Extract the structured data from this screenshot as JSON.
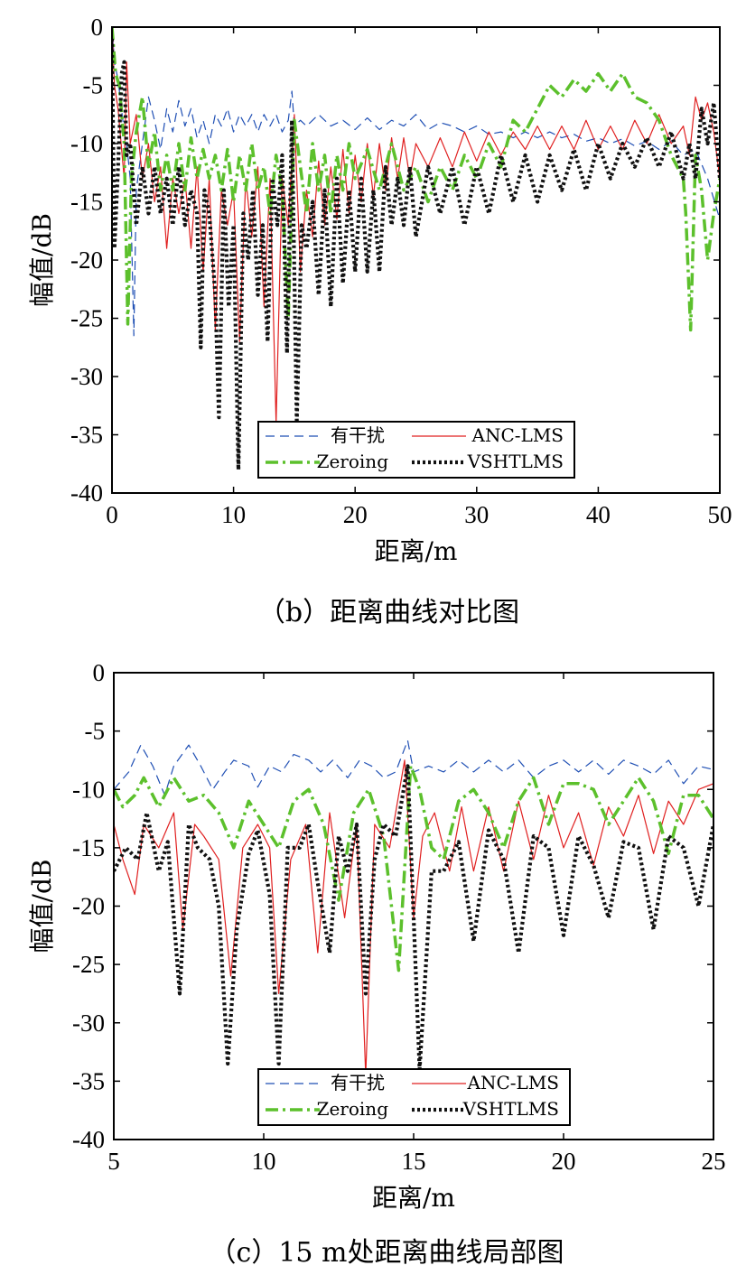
{
  "chart_data": [
    {
      "type": "line",
      "caption": "（b）距离曲线对比图",
      "xlabel": "距离/m",
      "ylabel": "幅值/dB",
      "xlim": [
        0,
        50
      ],
      "ylim": [
        -40,
        0
      ],
      "xticks": [
        0,
        10,
        20,
        30,
        40,
        50
      ],
      "yticks": [
        0,
        -5,
        -10,
        -15,
        -20,
        -25,
        -30,
        -35,
        -40
      ],
      "grid": false,
      "legend_position": "bottom-center",
      "series": [
        {
          "name": "有干扰",
          "color": "#1f4fb4",
          "style": "dashed",
          "x": [
            0,
            0.2,
            0.5,
            1,
            1.2,
            1.5,
            1.8,
            2,
            2.5,
            3,
            3.5,
            4,
            4.5,
            5,
            5.5,
            6,
            6.5,
            7,
            7.5,
            8,
            8.5,
            9,
            9.5,
            10,
            10.5,
            11,
            11.5,
            12,
            12.5,
            13,
            13.5,
            14,
            14.5,
            14.8,
            15,
            15.5,
            16,
            17,
            18,
            19,
            20,
            21,
            22,
            23,
            24,
            25,
            26,
            27,
            28,
            29,
            30,
            31,
            32,
            33,
            34,
            35,
            36,
            37,
            38,
            39,
            40,
            41,
            42,
            43,
            44,
            45,
            46,
            47,
            48,
            49,
            50
          ],
          "y": [
            0,
            -3,
            -4.5,
            -9,
            -10,
            -13,
            -26.5,
            -14,
            -10,
            -6,
            -8,
            -10.5,
            -7,
            -9,
            -6.3,
            -8.5,
            -7,
            -9.5,
            -8,
            -10,
            -7.5,
            -8.5,
            -7,
            -9,
            -7.5,
            -8.5,
            -7.5,
            -9,
            -7.5,
            -8.5,
            -7.5,
            -9,
            -8,
            -5.5,
            -8.5,
            -8,
            -8.5,
            -7.5,
            -8.5,
            -8,
            -8.8,
            -7.8,
            -8.8,
            -8,
            -8.5,
            -7.5,
            -8.8,
            -8.2,
            -8.5,
            -9,
            -8.5,
            -9.2,
            -9,
            -9.5,
            -9,
            -9.5,
            -9,
            -9.5,
            -9.2,
            -9.8,
            -9.5,
            -10,
            -9.6,
            -10.2,
            -9.8,
            -10.5,
            -9.8,
            -11,
            -10.5,
            -13,
            -16.5
          ]
        },
        {
          "name": "ANC-LMS",
          "color": "#e02020",
          "style": "solid",
          "x": [
            0,
            0.2,
            0.5,
            1,
            1.2,
            1.5,
            2,
            2.5,
            3,
            3.5,
            4,
            4.5,
            5,
            5.5,
            6,
            6.5,
            7,
            7.5,
            8,
            8.5,
            9,
            9.5,
            10,
            10.5,
            11,
            11.5,
            12,
            12.5,
            13,
            13.5,
            14,
            14.5,
            15,
            15.5,
            16,
            16.5,
            17,
            17.5,
            18,
            18.5,
            19,
            19.5,
            20,
            20.5,
            21,
            21.5,
            22,
            22.5,
            23,
            23.5,
            24,
            24.5,
            25,
            26,
            27,
            28,
            29,
            30,
            31,
            32,
            33,
            34,
            35,
            36,
            37,
            38,
            39,
            40,
            41,
            42,
            43,
            44,
            45,
            46,
            47,
            47.5,
            48,
            48.5,
            49,
            49.5,
            50
          ],
          "y": [
            0,
            -5,
            -7,
            -13,
            -3,
            -10,
            -7.5,
            -13,
            -10,
            -15,
            -12,
            -19,
            -13,
            -16,
            -13,
            -19,
            -12,
            -21,
            -13,
            -26,
            -14,
            -17,
            -14,
            -27,
            -13,
            -18,
            -12,
            -24,
            -13,
            -34,
            -13,
            -17,
            -7.5,
            -21,
            -14,
            -18,
            -11.5,
            -17,
            -12,
            -16.5,
            -10.5,
            -16,
            -11,
            -15,
            -10,
            -14.5,
            -10,
            -14,
            -9.5,
            -13,
            -9.5,
            -13,
            -10,
            -12,
            -9.5,
            -12,
            -9,
            -11.5,
            -9,
            -11,
            -9,
            -10.5,
            -8.5,
            -10.5,
            -8.5,
            -10.5,
            -8,
            -10.5,
            -8.5,
            -10.5,
            -8,
            -10,
            -7.5,
            -10,
            -8.5,
            -11,
            -6,
            -8,
            -6.5,
            -9,
            -13
          ]
        },
        {
          "name": "Zeroing",
          "color": "#5cc02c",
          "style": "dashdot",
          "x": [
            0,
            0.3,
            0.6,
            1,
            1.3,
            1.6,
            2,
            2.5,
            3,
            3.5,
            4,
            4.5,
            5,
            5.5,
            6,
            6.5,
            7,
            7.5,
            8,
            8.5,
            9,
            9.5,
            10,
            10.5,
            11,
            11.5,
            12,
            12.5,
            13,
            13.5,
            14,
            14.5,
            15,
            15.5,
            16,
            16.5,
            17,
            17.5,
            18,
            18.5,
            19,
            19.5,
            20,
            21,
            22,
            23,
            24,
            25,
            26,
            27,
            28,
            29,
            30,
            31,
            32,
            33,
            34,
            35,
            36,
            37,
            38,
            39,
            40,
            41,
            42,
            43,
            44,
            45,
            46,
            46.5,
            47,
            47.2,
            47.6,
            48,
            48.5,
            49,
            49.5,
            50
          ],
          "y": [
            0,
            -4,
            -5,
            -10,
            -25.5,
            -13,
            -9,
            -6,
            -12,
            -9,
            -14,
            -11,
            -14,
            -10,
            -14,
            -9.5,
            -13,
            -10.5,
            -13,
            -11,
            -14,
            -10.5,
            -15,
            -11,
            -14,
            -10,
            -14,
            -12,
            -16,
            -11,
            -14,
            -25,
            -8,
            -12,
            -16,
            -10,
            -14,
            -11,
            -16,
            -11,
            -14,
            -10,
            -13,
            -10.5,
            -14,
            -10,
            -14,
            -12,
            -15,
            -12,
            -14,
            -11,
            -13,
            -10,
            -12,
            -8,
            -9,
            -7,
            -5,
            -6,
            -4.5,
            -5.5,
            -4,
            -5.5,
            -4,
            -6,
            -6.5,
            -8,
            -11,
            -12,
            -13,
            -16,
            -26,
            -11,
            -14,
            -20,
            -16,
            -13
          ]
        },
        {
          "name": "VSHTLMS",
          "color": "#111111",
          "style": "dotted",
          "x": [
            0,
            0.2,
            0.5,
            0.8,
            1,
            1.2,
            1.5,
            2,
            2.5,
            3,
            3.5,
            4,
            4.5,
            5,
            5.5,
            6,
            6.5,
            7,
            7.3,
            7.6,
            8,
            8.5,
            8.8,
            9.2,
            9.6,
            10,
            10.4,
            10.8,
            11.2,
            11.6,
            12,
            12.4,
            12.8,
            13.2,
            13.6,
            14,
            14.4,
            14.8,
            15.2,
            15.6,
            16,
            16.5,
            17,
            17.5,
            18,
            18.5,
            19,
            19.5,
            20,
            20.5,
            21,
            21.5,
            22,
            22.5,
            23,
            23.5,
            24,
            24.5,
            25,
            26,
            27,
            28,
            29,
            30,
            31,
            32,
            33,
            34,
            35,
            36,
            37,
            38,
            39,
            40,
            41,
            42,
            43,
            44,
            45,
            46,
            47,
            47.5,
            48,
            48.5,
            49,
            49.5,
            50
          ],
          "y": [
            -1,
            -19,
            -12,
            -4,
            -3,
            -11,
            -10,
            -17,
            -12,
            -16,
            -12,
            -16,
            -13,
            -17,
            -12,
            -17,
            -14,
            -16,
            -27.5,
            -14,
            -16,
            -23,
            -33.5,
            -14,
            -24,
            -17,
            -38,
            -16,
            -20,
            -14,
            -23,
            -17,
            -27,
            -13,
            -17,
            -11,
            -28,
            -8,
            -34,
            -17,
            -19,
            -15,
            -23,
            -14,
            -24,
            -13,
            -22,
            -14,
            -21,
            -13,
            -21,
            -14,
            -21,
            -12,
            -17,
            -13,
            -17,
            -12,
            -18,
            -12,
            -16,
            -12,
            -17,
            -12,
            -16,
            -11,
            -15,
            -11,
            -15,
            -11,
            -14,
            -10.5,
            -14,
            -10,
            -13,
            -10,
            -12,
            -9.5,
            -12,
            -9,
            -13,
            -10,
            -13,
            -7,
            -10,
            -6.5,
            -13
          ]
        }
      ]
    },
    {
      "type": "line",
      "caption": "（c）15 m处距离曲线局部图",
      "xlabel": "距离/m",
      "ylabel": "幅值/dB",
      "xlim": [
        5,
        25
      ],
      "ylim": [
        -40,
        0
      ],
      "xticks": [
        5,
        10,
        15,
        20,
        25
      ],
      "yticks": [
        0,
        -5,
        -10,
        -15,
        -20,
        -25,
        -30,
        -35,
        -40
      ],
      "grid": false,
      "legend_position": "bottom-center",
      "series": [
        {
          "name": "有干扰",
          "color": "#1f4fb4",
          "style": "dashed",
          "x": [
            5,
            5.5,
            5.9,
            6.3,
            6.7,
            7,
            7.5,
            7.9,
            8.3,
            8.7,
            9,
            9.5,
            9.8,
            10.2,
            10.6,
            11,
            11.5,
            11.9,
            12.3,
            12.8,
            13.2,
            13.6,
            14,
            14.4,
            14.8,
            15,
            15.5,
            16,
            16.5,
            17,
            17.5,
            18,
            18.5,
            19,
            19.5,
            20,
            20.5,
            21,
            21.5,
            22,
            22.5,
            23,
            23.5,
            24,
            24.5,
            25
          ],
          "y": [
            -10,
            -8.5,
            -6.2,
            -8,
            -10.5,
            -8,
            -6.2,
            -8,
            -10,
            -8.5,
            -7.5,
            -8,
            -9.8,
            -8,
            -8.5,
            -7,
            -7.5,
            -8.5,
            -7.5,
            -9,
            -7.5,
            -8,
            -9,
            -8.5,
            -5.8,
            -8.5,
            -8,
            -8.5,
            -7.5,
            -8.5,
            -7.5,
            -8.5,
            -7.5,
            -9,
            -8,
            -7.5,
            -8.5,
            -7.5,
            -8.7,
            -7.5,
            -8,
            -8.7,
            -7.5,
            -9.5,
            -8,
            -8.3
          ]
        },
        {
          "name": "ANC-LMS",
          "color": "#e02020",
          "style": "solid",
          "x": [
            5,
            5.3,
            5.7,
            6,
            6.5,
            7,
            7.3,
            7.7,
            8,
            8.5,
            8.9,
            9.3,
            9.8,
            10.2,
            10.5,
            10.9,
            11.4,
            11.8,
            12.2,
            12.7,
            13.1,
            13.4,
            13.7,
            14.2,
            14.7,
            15,
            15.3,
            15.7,
            16.2,
            16.6,
            17,
            17.5,
            18,
            18.5,
            19,
            19.5,
            20,
            20.5,
            21,
            21.5,
            22,
            22.5,
            23,
            23.5,
            24,
            24.5,
            25
          ],
          "y": [
            -13,
            -16,
            -19,
            -13,
            -15,
            -12,
            -22,
            -13,
            -14,
            -16,
            -26,
            -15,
            -13,
            -15,
            -27.5,
            -16,
            -13,
            -24,
            -12,
            -21,
            -13,
            -34.5,
            -13,
            -15,
            -7.5,
            -21,
            -14,
            -12,
            -17,
            -11.5,
            -17,
            -11.5,
            -17,
            -11,
            -16,
            -10.5,
            -15,
            -12,
            -16.5,
            -11.5,
            -14,
            -10.5,
            -15.5,
            -11,
            -13,
            -10,
            -9.5
          ]
        },
        {
          "name": "Zeroing",
          "color": "#5cc02c",
          "style": "dashdot",
          "x": [
            5,
            5.3,
            5.7,
            6,
            6.5,
            7,
            7.5,
            8,
            8.5,
            9,
            9.5,
            10,
            10.5,
            11,
            11.5,
            12,
            12.5,
            13,
            13.5,
            14,
            14.5,
            14.9,
            15.2,
            15.6,
            16,
            16.5,
            17,
            17.5,
            18,
            18.5,
            19,
            19.5,
            20,
            20.5,
            21,
            21.5,
            22,
            22.5,
            23,
            23.5,
            24,
            24.5,
            25
          ],
          "y": [
            -10,
            -11.5,
            -10.5,
            -9,
            -11.5,
            -9,
            -11,
            -10.5,
            -12,
            -15,
            -11,
            -13,
            -15,
            -11,
            -10,
            -13,
            -19.5,
            -12,
            -10,
            -14,
            -25.5,
            -8,
            -10,
            -15,
            -16,
            -11,
            -10,
            -12,
            -15,
            -11,
            -9,
            -13,
            -9.5,
            -9.5,
            -10,
            -13,
            -11,
            -9,
            -11,
            -15.5,
            -10.5,
            -10.5,
            -12.5
          ]
        },
        {
          "name": "VSHTLMS",
          "color": "#111111",
          "style": "dotted",
          "x": [
            5,
            5.4,
            5.8,
            6.1,
            6.5,
            6.8,
            7.2,
            7.5,
            7.8,
            8.2,
            8.5,
            8.8,
            9.1,
            9.5,
            9.8,
            10.2,
            10.5,
            10.8,
            11.2,
            11.5,
            11.8,
            12.2,
            12.5,
            12.8,
            13.1,
            13.4,
            13.7,
            14,
            14.4,
            14.8,
            15.2,
            15.6,
            16,
            16.5,
            17,
            17.5,
            18,
            18.5,
            19,
            19.5,
            20,
            20.5,
            21,
            21.5,
            22,
            22.5,
            23,
            23.5,
            24,
            24.5,
            25
          ],
          "y": [
            -17,
            -15,
            -16,
            -12,
            -17,
            -14.5,
            -27.5,
            -13,
            -15,
            -16,
            -20,
            -33.5,
            -22,
            -15.5,
            -13.5,
            -19,
            -33.5,
            -15,
            -15,
            -13,
            -18,
            -24,
            -14,
            -17,
            -13,
            -27.5,
            -16,
            -13,
            -14,
            -8,
            -34,
            -17,
            -17,
            -14.5,
            -23,
            -13.5,
            -16,
            -24,
            -14,
            -15,
            -22.5,
            -14,
            -16.5,
            -21,
            -14.5,
            -15,
            -22,
            -14,
            -15,
            -20,
            -13
          ]
        }
      ]
    }
  ]
}
